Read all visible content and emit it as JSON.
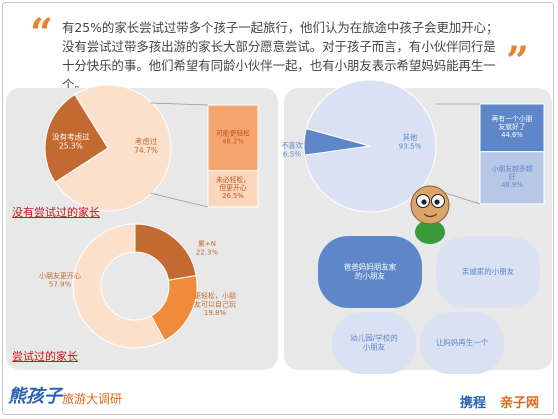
{
  "intro": {
    "text": "有25%的家长尝试过带多个孩子一起旅行，他们认为在旅途中孩子会更加开心；没有尝试过带多孩出游的家长大部分愿意尝试。对于孩子而言，有小伙伴同行是十分快乐的事。他们希望有同龄小伙伴一起，也有小朋友表示希望妈妈能再生一个。"
  },
  "sections": {
    "not_tried_title": "没有尝试过的家长",
    "tried_title": "尝试过的家长"
  },
  "footer": {
    "title": "熊孩子",
    "subtitle": "旅游大调研",
    "brand_ctrip": "携程",
    "brand_parenting": "亲子网"
  },
  "colors": {
    "brown": "#c26a32",
    "peach_light": "#fbe0cc",
    "peach": "#f5a66e",
    "orange": "#f08b3c",
    "pale_orange": "#fad6bc",
    "blue": "#5d87c9",
    "pale_blue": "#d9e1f2",
    "light_blue": "#b6c8e6",
    "red_title": "#c9141b"
  },
  "chart_data": [
    {
      "type": "pie",
      "labels": [
        "没有考虑过",
        "考虑过"
      ],
      "label_values": [
        "25.3%",
        "74.7%"
      ],
      "values": [
        25.3,
        74.7
      ],
      "breakdown_of": "考虑过",
      "breakdown": {
        "type": "bar",
        "labels": [
          "可能更轻松",
          "未必轻松，但更开心"
        ],
        "label_values": [
          "48.2%",
          "26.5%"
        ],
        "values": [
          48.2,
          26.5
        ]
      }
    },
    {
      "type": "pie",
      "subtype": "donut",
      "labels": [
        "累+N",
        "更轻松，小朋友可以自己玩",
        "小朋友更开心"
      ],
      "label_values": [
        "22.3%",
        "19.8%",
        "57.9%"
      ],
      "values": [
        22.3,
        19.8,
        57.9
      ]
    },
    {
      "type": "pie",
      "labels": [
        "不喜欢",
        "其他"
      ],
      "label_values": [
        "6.5%",
        "93.5%"
      ],
      "values": [
        6.5,
        93.5
      ],
      "breakdown_of": "其他",
      "breakdown": {
        "type": "bar",
        "labels": [
          "再有一个小朋友就好了",
          "小朋友越多越好"
        ],
        "label_values": [
          "44.6%",
          "48.9%"
        ],
        "values": [
          44.6,
          48.9
        ]
      }
    },
    {
      "type": "table",
      "items": [
        "爸爸妈妈朋友家的小朋友",
        "亲戚家的小朋友",
        "幼儿园/学校的小朋友",
        "让妈妈再生一个"
      ]
    }
  ]
}
